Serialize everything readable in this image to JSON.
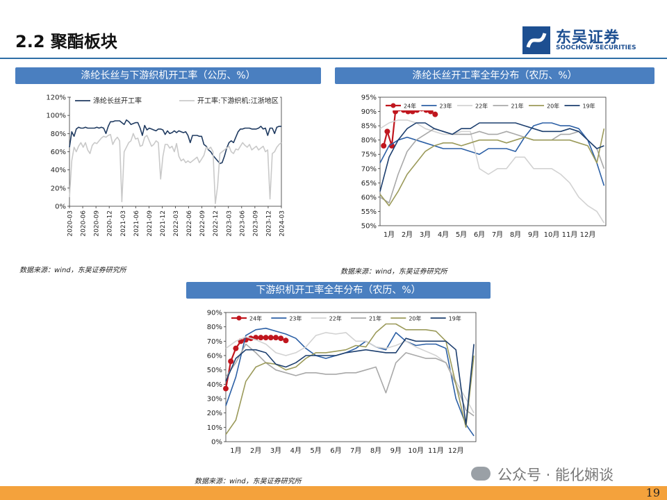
{
  "header": {
    "title": "2.2 聚酯板块",
    "logo_cn": "东吴证券",
    "logo_en": "SOOCHOW SECURITIES"
  },
  "charts": {
    "c1": {
      "banner": "涤纶长丝与下游织机开工率（公历、%）",
      "source": "数据来源：wind，东吴证券研究所"
    },
    "c2": {
      "banner": "涤纶长丝开工率全年分布（农历、%）",
      "source": "数据来源：wind，东吴证券研究所"
    },
    "c3": {
      "banner": "下游织机开工率全年分布（农历、%）",
      "source": "数据来源：wind，东吴证券研究所"
    }
  },
  "footer": {
    "page_number": "19",
    "watermark": "公众号 · 能化娴谈"
  },
  "chart_data": [
    {
      "id": "c1",
      "type": "line",
      "title": "",
      "ylim": [
        0,
        120
      ],
      "yticks": [
        0,
        20,
        40,
        60,
        80,
        100,
        120
      ],
      "ytick_labels": [
        "0%",
        "20%",
        "40%",
        "60%",
        "80%",
        "100%",
        "120%"
      ],
      "xticks": [
        "2020-03",
        "2020-06",
        "2020-09",
        "2020-12",
        "2021-03",
        "2021-06",
        "2021-09",
        "2021-12",
        "2022-03",
        "2022-06",
        "2022-09",
        "2022-12",
        "2023-03",
        "2023-06",
        "2023-09",
        "2023-12",
        "2024-03"
      ],
      "x_step": "half-month",
      "legend": "top",
      "series": [
        {
          "name": "涤纶长丝开工率",
          "color": "#1f3a60",
          "values": [
            65,
            82,
            77,
            85,
            87,
            86,
            86,
            87,
            86,
            86,
            86,
            86,
            87,
            86,
            87,
            86,
            80,
            88,
            93,
            93,
            94,
            94,
            94,
            92,
            90,
            95,
            93,
            90,
            91,
            92,
            92,
            86,
            78,
            89,
            84,
            86,
            85,
            84,
            83,
            85,
            85,
            84,
            79,
            83,
            80,
            81,
            83,
            81,
            83,
            82,
            81,
            82,
            78,
            70,
            78,
            78,
            78,
            77,
            77,
            68,
            66,
            62,
            60,
            56,
            53,
            50,
            47,
            48,
            55,
            64,
            70,
            72,
            70,
            76,
            82,
            85,
            85,
            86,
            86,
            86,
            85,
            85,
            85,
            86,
            88,
            85,
            86,
            78,
            86,
            86,
            80,
            87,
            88,
            88
          ]
        },
        {
          "name": "开工率:下游织机:江浙地区",
          "color": "#c9c9c9",
          "values": [
            10,
            50,
            65,
            60,
            66,
            70,
            65,
            70,
            62,
            58,
            67,
            70,
            69,
            72,
            75,
            77,
            76,
            78,
            79,
            68,
            73,
            76,
            72,
            5,
            60,
            65,
            70,
            72,
            80,
            74,
            75,
            66,
            67,
            76,
            78,
            72,
            66,
            68,
            72,
            70,
            30,
            55,
            68,
            68,
            64,
            66,
            60,
            69,
            55,
            50,
            52,
            48,
            50,
            48,
            50,
            52,
            54,
            48,
            52,
            56,
            65,
            63,
            65,
            60,
            3,
            22,
            58,
            60,
            62,
            64,
            66,
            60,
            58,
            63,
            62,
            66,
            70,
            67,
            65,
            68,
            62,
            64,
            66,
            62,
            64,
            66,
            60,
            62,
            8,
            58,
            60,
            65,
            68,
            70
          ]
        }
      ]
    },
    {
      "id": "c2",
      "type": "line",
      "title": "",
      "ylim": [
        50,
        95
      ],
      "yticks": [
        50,
        55,
        60,
        65,
        70,
        75,
        80,
        85,
        90,
        95
      ],
      "ytick_labels": [
        "50%",
        "55%",
        "60%",
        "65%",
        "70%",
        "75%",
        "80%",
        "85%",
        "90%",
        "95%"
      ],
      "xticks": [
        "1月",
        "2月",
        "3月",
        "4月",
        "5月",
        "6月",
        "7月",
        "8月",
        "9月",
        "10月",
        "11月",
        "12月"
      ],
      "xlim": [
        0,
        12.5
      ],
      "legend": "top",
      "series": [
        {
          "name": "24年",
          "color": "#c0161e",
          "markers": true,
          "x": [
            0.2,
            0.4,
            0.65,
            0.85,
            1.05,
            1.3,
            1.55,
            1.8,
            2.05,
            2.3,
            2.55,
            2.8,
            3.05
          ],
          "y": [
            78,
            83,
            78,
            90,
            91,
            90.5,
            90,
            90,
            90.5,
            91,
            90.5,
            90,
            89
          ]
        },
        {
          "name": "23年",
          "color": "#2b5fa5",
          "x": [
            0,
            0.5,
            1,
            1.5,
            2,
            2.5,
            3,
            3.5,
            4,
            4.5,
            5,
            5.5,
            6,
            6.5,
            7,
            7.5,
            8,
            8.5,
            9,
            9.5,
            10,
            10.5,
            11,
            11.5,
            12,
            12.4
          ],
          "y": [
            72,
            78,
            80,
            81,
            80,
            79,
            78,
            77,
            77,
            77,
            76,
            75,
            77,
            77,
            77,
            76,
            81,
            85,
            86,
            86,
            85,
            85,
            84,
            80,
            72,
            64
          ]
        },
        {
          "name": "22年",
          "color": "#d2d2d2",
          "x": [
            0,
            0.5,
            1,
            1.5,
            2,
            2.5,
            3,
            3.5,
            4,
            4.5,
            5,
            5.5,
            6,
            6.5,
            7,
            7.5,
            8,
            8.5,
            9,
            9.5,
            10,
            10.5,
            11,
            11.5,
            12,
            12.4
          ],
          "y": [
            84,
            86,
            87,
            87,
            86,
            84,
            83,
            82,
            82,
            83,
            83,
            70,
            68,
            70,
            70,
            74,
            74,
            70,
            70,
            70,
            68,
            65,
            60,
            57,
            55,
            51
          ]
        },
        {
          "name": "21年",
          "color": "#a8a8a8",
          "x": [
            0,
            0.5,
            1,
            1.5,
            2,
            2.5,
            3,
            3.5,
            4,
            4.5,
            5,
            5.5,
            6,
            6.5,
            7,
            7.5,
            8,
            8.5,
            9,
            9.5,
            10,
            10.5,
            11,
            11.5,
            12,
            12.4
          ],
          "y": [
            60,
            58,
            68,
            76,
            80,
            82,
            84,
            83,
            82,
            82,
            82,
            83,
            82,
            82,
            83,
            82,
            81,
            80,
            80,
            80,
            82,
            82,
            83,
            80,
            77,
            70
          ]
        },
        {
          "name": "20年",
          "color": "#9b9a5a",
          "x": [
            0,
            0.5,
            1,
            1.5,
            2,
            2.5,
            3,
            3.5,
            4,
            4.5,
            5,
            5.5,
            6,
            6.5,
            7,
            7.5,
            8,
            8.5,
            9,
            9.5,
            10,
            10.5,
            11,
            11.5,
            12,
            12.4
          ],
          "y": [
            61,
            57,
            62,
            68,
            72,
            76,
            78,
            79,
            79,
            78,
            79,
            80,
            80,
            80,
            79,
            80,
            81,
            80,
            80,
            80,
            80,
            80,
            79,
            78,
            72,
            84
          ]
        },
        {
          "name": "19年",
          "color": "#1c3e6e",
          "x": [
            0,
            0.5,
            1,
            1.5,
            2,
            2.5,
            3,
            3.5,
            4,
            4.5,
            5,
            5.5,
            6,
            6.5,
            7,
            7.5,
            8,
            8.5,
            9,
            9.5,
            10,
            10.5,
            11,
            11.5,
            12,
            12.4
          ],
          "y": [
            62,
            74,
            80,
            84,
            86,
            86,
            84,
            83,
            82,
            84,
            84,
            86,
            86,
            86,
            86,
            86,
            85,
            84,
            83,
            83,
            83,
            84,
            83,
            80,
            77,
            78
          ]
        }
      ]
    },
    {
      "id": "c3",
      "type": "line",
      "title": "",
      "ylim": [
        0,
        90
      ],
      "yticks": [
        0,
        10,
        20,
        30,
        40,
        50,
        60,
        70,
        80,
        90
      ],
      "ytick_labels": [
        "0%",
        "10%",
        "20%",
        "30%",
        "40%",
        "50%",
        "60%",
        "70%",
        "80%",
        "90%"
      ],
      "xticks": [
        "1月",
        "2月",
        "3月",
        "4月",
        "5月",
        "6月",
        "7月",
        "8月",
        "9月",
        "10月",
        "11月",
        "12月"
      ],
      "xlim": [
        0,
        12.5
      ],
      "legend": "top",
      "series": [
        {
          "name": "24年",
          "color": "#c0161e",
          "markers": true,
          "x": [
            0,
            0.25,
            0.5,
            0.75,
            1,
            1.25,
            1.5,
            1.75,
            2,
            2.25,
            2.5,
            2.75,
            3
          ],
          "y": [
            37,
            56,
            65,
            70,
            71,
            72,
            72.5,
            72.5,
            72.5,
            72.5,
            72.5,
            72,
            70.5
          ]
        },
        {
          "name": "23年",
          "color": "#2b5fa5",
          "x": [
            0,
            0.5,
            1,
            1.5,
            2,
            2.5,
            3,
            3.5,
            4,
            4.5,
            5,
            5.5,
            6,
            6.5,
            7,
            7.5,
            8,
            8.5,
            9,
            9.5,
            10,
            10.5,
            11,
            11.5,
            12,
            12.4
          ],
          "y": [
            25,
            45,
            74,
            78,
            79,
            77,
            75,
            72,
            65,
            60,
            58,
            60,
            62,
            65,
            70,
            66,
            64,
            76,
            70,
            67,
            68,
            68,
            65,
            30,
            12,
            4
          ]
        },
        {
          "name": "22年",
          "color": "#d2d2d2",
          "x": [
            0,
            0.5,
            1,
            1.5,
            2,
            2.5,
            3,
            3.5,
            4,
            4.5,
            5,
            5.5,
            6,
            6.5,
            7,
            7.5,
            8,
            8.5,
            9,
            9.5,
            10,
            10.5,
            11,
            11.5,
            12,
            12.4
          ],
          "y": [
            65,
            70,
            73,
            71,
            68,
            62,
            60,
            62,
            66,
            74,
            76,
            75,
            76,
            70,
            70,
            66,
            65,
            67,
            70,
            66,
            63,
            60,
            55,
            42,
            30,
            20
          ]
        },
        {
          "name": "21年",
          "color": "#a8a8a8",
          "x": [
            0,
            0.5,
            1,
            1.5,
            2,
            2.5,
            3,
            3.5,
            4,
            4.5,
            5,
            5.5,
            6,
            6.5,
            7,
            7.5,
            8,
            8.5,
            9,
            9.5,
            10,
            10.5,
            11,
            11.5,
            12,
            12.4
          ],
          "y": [
            45,
            55,
            68,
            62,
            55,
            50,
            48,
            46,
            48,
            48,
            47,
            47,
            48,
            48,
            50,
            52,
            34,
            55,
            62,
            60,
            58,
            58,
            55,
            40,
            22,
            18
          ]
        },
        {
          "name": "20年",
          "color": "#9b9a5a",
          "x": [
            0,
            0.5,
            1,
            1.5,
            2,
            2.5,
            3,
            3.5,
            4,
            4.5,
            5,
            5.5,
            6,
            6.5,
            7,
            7.5,
            8,
            8.5,
            9,
            9.5,
            10,
            10.5,
            11,
            11.5,
            12,
            12.4
          ],
          "y": [
            5,
            15,
            42,
            52,
            55,
            54,
            50,
            52,
            58,
            62,
            62,
            63,
            64,
            67,
            66,
            76,
            82,
            82,
            78,
            78,
            78,
            77,
            70,
            40,
            10,
            60
          ]
        },
        {
          "name": "19年",
          "color": "#1c3e6e",
          "x": [
            0,
            0.5,
            1,
            1.5,
            2,
            2.5,
            3,
            3.5,
            4,
            4.5,
            5,
            5.5,
            6,
            6.5,
            7,
            7.5,
            8,
            8.5,
            9,
            9.5,
            10,
            10.5,
            11,
            11.5,
            12,
            12.4
          ],
          "y": [
            42,
            58,
            64,
            64,
            62,
            54,
            52,
            55,
            60,
            60,
            60,
            60,
            62,
            63,
            64,
            63,
            62,
            62,
            72,
            70,
            70,
            70,
            70,
            64,
            12,
            68
          ]
        }
      ]
    }
  ]
}
